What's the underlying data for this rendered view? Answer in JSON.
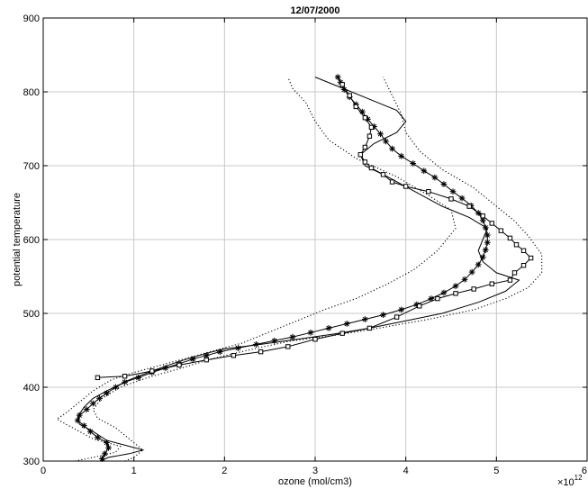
{
  "chart_data": {
    "type": "line",
    "title": "12/07/2000",
    "xlabel": "ozone (mol/cm3)",
    "ylabel": "potential temperature",
    "x_multiplier_label": "×10",
    "x_multiplier_exponent": "12",
    "xlim": [
      0,
      6
    ],
    "ylim": [
      300,
      900
    ],
    "xticks": [
      0,
      1,
      2,
      3,
      4,
      5,
      6
    ],
    "yticks": [
      300,
      400,
      500,
      600,
      700,
      800,
      900
    ],
    "grid": true,
    "colors": {
      "axis": "#000000",
      "grid": "#c8c8c8",
      "line": "#000000"
    },
    "series": [
      {
        "style": "solid",
        "points": [
          [
            0.63,
            300
          ],
          [
            0.72,
            305
          ],
          [
            0.95,
            310
          ],
          [
            1.1,
            315
          ],
          [
            0.95,
            320
          ],
          [
            0.7,
            328
          ],
          [
            0.55,
            340
          ],
          [
            0.4,
            350
          ],
          [
            0.38,
            360
          ],
          [
            0.45,
            373
          ],
          [
            0.55,
            385
          ],
          [
            0.7,
            395
          ],
          [
            0.95,
            410
          ],
          [
            1.2,
            422
          ],
          [
            1.5,
            435
          ],
          [
            1.8,
            446
          ],
          [
            2.0,
            452
          ],
          [
            2.4,
            458
          ],
          [
            2.8,
            465
          ],
          [
            3.2,
            472
          ],
          [
            3.6,
            480
          ],
          [
            4.0,
            490
          ],
          [
            4.4,
            500
          ],
          [
            4.8,
            515
          ],
          [
            5.1,
            530
          ],
          [
            5.25,
            545
          ],
          [
            5.0,
            555
          ],
          [
            4.85,
            570
          ],
          [
            4.8,
            585
          ],
          [
            4.85,
            600
          ],
          [
            4.9,
            615
          ],
          [
            4.7,
            630
          ],
          [
            4.4,
            645
          ],
          [
            4.1,
            665
          ],
          [
            3.8,
            685
          ],
          [
            3.55,
            700
          ],
          [
            3.5,
            715
          ],
          [
            3.65,
            730
          ],
          [
            3.9,
            745
          ],
          [
            4.0,
            760
          ],
          [
            3.9,
            775
          ],
          [
            3.6,
            790
          ],
          [
            3.3,
            805
          ],
          [
            3.0,
            820
          ]
        ]
      },
      {
        "style": "dotted",
        "points": [
          [
            0.35,
            300
          ],
          [
            0.55,
            305
          ],
          [
            0.8,
            312
          ],
          [
            0.85,
            320
          ],
          [
            0.55,
            330
          ],
          [
            0.4,
            340
          ],
          [
            0.25,
            350
          ],
          [
            0.15,
            357
          ],
          [
            0.25,
            365
          ],
          [
            0.35,
            375
          ],
          [
            0.45,
            385
          ],
          [
            0.55,
            395
          ],
          [
            0.75,
            410
          ],
          [
            1.0,
            420
          ],
          [
            1.3,
            430
          ],
          [
            1.6,
            440
          ],
          [
            1.9,
            450
          ],
          [
            2.2,
            460
          ],
          [
            2.5,
            475
          ],
          [
            2.8,
            490
          ],
          [
            3.1,
            505
          ],
          [
            3.45,
            520
          ],
          [
            3.8,
            540
          ],
          [
            4.1,
            560
          ],
          [
            4.35,
            585
          ],
          [
            4.55,
            615
          ],
          [
            4.5,
            640
          ],
          [
            4.25,
            660
          ],
          [
            3.9,
            685
          ],
          [
            3.45,
            710
          ],
          [
            3.15,
            735
          ],
          [
            3.0,
            760
          ],
          [
            2.9,
            785
          ],
          [
            2.75,
            805
          ],
          [
            2.7,
            820
          ]
        ]
      },
      {
        "style": "dotted",
        "points": [
          [
            0.9,
            300
          ],
          [
            1.0,
            305
          ],
          [
            1.1,
            315
          ],
          [
            0.95,
            330
          ],
          [
            0.8,
            345
          ],
          [
            0.6,
            358
          ],
          [
            0.55,
            370
          ],
          [
            0.65,
            385
          ],
          [
            0.85,
            400
          ],
          [
            1.15,
            413
          ],
          [
            1.5,
            425
          ],
          [
            1.85,
            438
          ],
          [
            2.25,
            450
          ],
          [
            2.7,
            462
          ],
          [
            3.2,
            470
          ],
          [
            3.7,
            480
          ],
          [
            4.25,
            492
          ],
          [
            4.75,
            505
          ],
          [
            5.1,
            520
          ],
          [
            5.35,
            535
          ],
          [
            5.5,
            555
          ],
          [
            5.5,
            580
          ],
          [
            5.35,
            605
          ],
          [
            5.2,
            625
          ],
          [
            5.0,
            645
          ],
          [
            4.75,
            670
          ],
          [
            4.4,
            695
          ],
          [
            4.15,
            720
          ],
          [
            4.0,
            745
          ],
          [
            3.95,
            770
          ],
          [
            3.85,
            795
          ],
          [
            3.75,
            820
          ]
        ]
      },
      {
        "style": "asterisk",
        "points": [
          [
            0.65,
            303
          ],
          [
            0.68,
            310
          ],
          [
            0.72,
            318
          ],
          [
            0.7,
            325
          ],
          [
            0.6,
            332
          ],
          [
            0.52,
            340
          ],
          [
            0.45,
            348
          ],
          [
            0.38,
            355
          ],
          [
            0.4,
            362
          ],
          [
            0.48,
            370
          ],
          [
            0.55,
            378
          ],
          [
            0.62,
            385
          ],
          [
            0.7,
            392
          ],
          [
            0.8,
            400
          ],
          [
            0.9,
            407
          ],
          [
            1.05,
            413
          ],
          [
            1.2,
            420
          ],
          [
            1.35,
            426
          ],
          [
            1.5,
            432
          ],
          [
            1.65,
            438
          ],
          [
            1.8,
            443
          ],
          [
            1.95,
            448
          ],
          [
            2.15,
            453
          ],
          [
            2.35,
            458
          ],
          [
            2.55,
            463
          ],
          [
            2.75,
            468
          ],
          [
            2.95,
            474
          ],
          [
            3.15,
            480
          ],
          [
            3.35,
            486
          ],
          [
            3.55,
            492
          ],
          [
            3.75,
            498
          ],
          [
            3.95,
            505
          ],
          [
            4.12,
            512
          ],
          [
            4.28,
            520
          ],
          [
            4.42,
            528
          ],
          [
            4.55,
            537
          ],
          [
            4.65,
            546
          ],
          [
            4.73,
            556
          ],
          [
            4.8,
            566
          ],
          [
            4.85,
            576
          ],
          [
            4.88,
            586
          ],
          [
            4.9,
            596
          ],
          [
            4.9,
            606
          ],
          [
            4.88,
            616
          ],
          [
            4.85,
            626
          ],
          [
            4.8,
            636
          ],
          [
            4.72,
            646
          ],
          [
            4.62,
            656
          ],
          [
            4.52,
            665
          ],
          [
            4.42,
            675
          ],
          [
            4.32,
            684
          ],
          [
            4.2,
            693
          ],
          [
            4.08,
            703
          ],
          [
            3.95,
            713
          ],
          [
            3.85,
            723
          ],
          [
            3.78,
            733
          ],
          [
            3.72,
            743
          ],
          [
            3.65,
            753
          ],
          [
            3.58,
            763
          ],
          [
            3.52,
            773
          ],
          [
            3.45,
            783
          ],
          [
            3.38,
            793
          ],
          [
            3.32,
            803
          ],
          [
            3.28,
            813
          ],
          [
            3.25,
            820
          ]
        ]
      },
      {
        "style": "square",
        "points": [
          [
            0.6,
            413
          ],
          [
            0.9,
            415
          ],
          [
            1.2,
            422
          ],
          [
            1.5,
            430
          ],
          [
            1.8,
            437
          ],
          [
            2.1,
            443
          ],
          [
            2.4,
            448
          ],
          [
            2.7,
            455
          ],
          [
            3.0,
            465
          ],
          [
            3.3,
            473
          ],
          [
            3.6,
            480
          ],
          [
            3.9,
            495
          ],
          [
            4.15,
            510
          ],
          [
            4.35,
            520
          ],
          [
            4.55,
            527
          ],
          [
            4.75,
            533
          ],
          [
            4.95,
            540
          ],
          [
            5.15,
            545
          ],
          [
            5.2,
            555
          ],
          [
            5.3,
            565
          ],
          [
            5.38,
            575
          ],
          [
            5.3,
            585
          ],
          [
            5.22,
            593
          ],
          [
            5.15,
            602
          ],
          [
            5.05,
            612
          ],
          [
            4.95,
            622
          ],
          [
            4.85,
            632
          ],
          [
            4.7,
            645
          ],
          [
            4.5,
            655
          ],
          [
            4.25,
            665
          ],
          [
            4.0,
            672
          ],
          [
            3.85,
            678
          ],
          [
            3.75,
            688
          ],
          [
            3.62,
            697
          ],
          [
            3.55,
            705
          ],
          [
            3.5,
            715
          ],
          [
            3.55,
            725
          ],
          [
            3.6,
            740
          ],
          [
            3.62,
            752
          ],
          [
            3.55,
            765
          ],
          [
            3.45,
            780
          ],
          [
            3.38,
            795
          ],
          [
            3.3,
            810
          ]
        ]
      }
    ]
  }
}
